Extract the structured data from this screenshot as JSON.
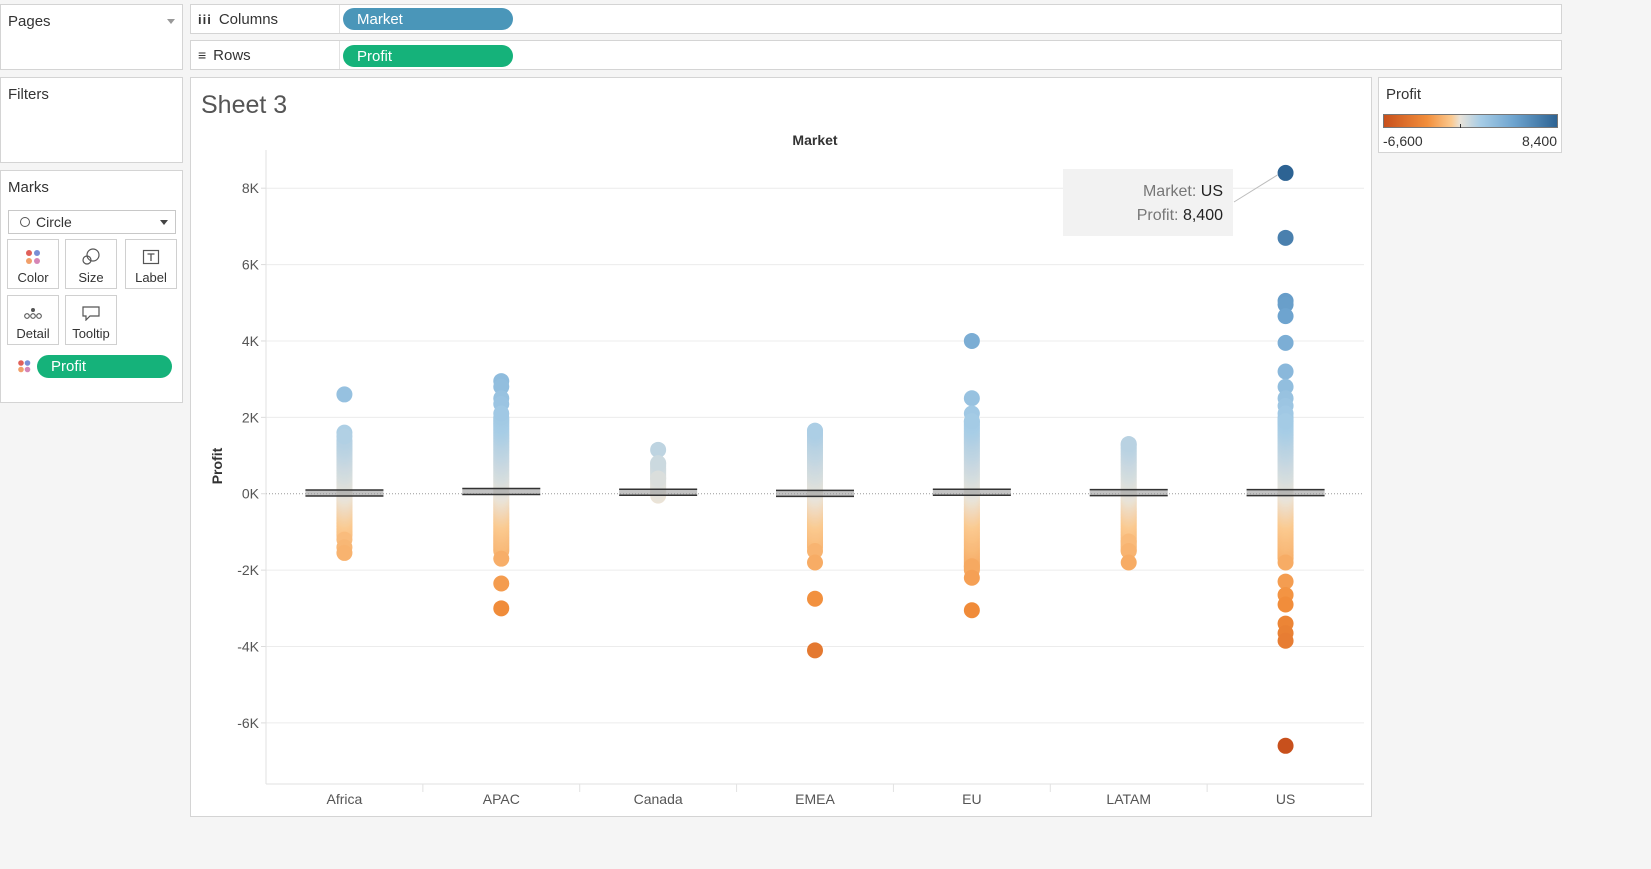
{
  "pages": {
    "title": "Pages"
  },
  "filters": {
    "title": "Filters"
  },
  "marks": {
    "title": "Marks",
    "mark_type": "Circle",
    "buttons": {
      "color": "Color",
      "size": "Size",
      "label": "Label",
      "detail": "Detail",
      "tooltip": "Tooltip"
    },
    "color_pill": "Profit"
  },
  "shelves": {
    "columns": {
      "label": "Columns",
      "pill": "Market"
    },
    "rows": {
      "label": "Rows",
      "pill": "Profit"
    }
  },
  "sheet": {
    "title": "Sheet 3"
  },
  "legend": {
    "title": "Profit",
    "min_label": "-6,600",
    "max_label": "8,400"
  },
  "tooltip": {
    "market_label": "Market:",
    "market_value": "US",
    "profit_label": "Profit:",
    "profit_value": "8,400"
  },
  "colors": {
    "pill_blue": "#4a96b9",
    "pill_green": "#15b27a",
    "high": "#2d6393",
    "low": "#c8501c"
  },
  "chart_data": {
    "type": "scatter",
    "title": "Market",
    "xlabel": "Market",
    "ylabel": "Profit",
    "categories": [
      "Africa",
      "APAC",
      "Canada",
      "EMEA",
      "EU",
      "LATAM",
      "US"
    ],
    "ylim": [
      -7600,
      9000
    ],
    "yticks": [
      -6000,
      -4000,
      -2000,
      0,
      2000,
      4000,
      6000,
      8000
    ],
    "ytick_labels": [
      "-6K",
      "-4K",
      "-2K",
      "0K",
      "2K",
      "4K",
      "6K",
      "8K"
    ],
    "color_range": [
      -6600,
      8400
    ],
    "grid": true,
    "series": [
      {
        "market": "Africa",
        "outliers": [
          2600,
          1600,
          1500,
          -1200,
          -1400,
          -1550
        ],
        "band": [
          -1100,
          1400
        ],
        "mean": 20
      },
      {
        "market": "APAC",
        "outliers": [
          2950,
          2800,
          2500,
          2350,
          2100,
          -1700,
          -2350,
          -3000
        ],
        "band": [
          -1500,
          2000
        ],
        "mean": 60
      },
      {
        "market": "Canada",
        "outliers": [
          1150,
          800,
          400
        ],
        "band": [
          -50,
          800
        ],
        "mean": 40
      },
      {
        "market": "EMEA",
        "outliers": [
          1650,
          -1500,
          -1800,
          -2750,
          -4100
        ],
        "band": [
          -1400,
          1650
        ],
        "mean": 10
      },
      {
        "market": "EU",
        "outliers": [
          4000,
          2500,
          2100,
          1900,
          -1900,
          -2200,
          -3050
        ],
        "band": [
          -2000,
          1900
        ],
        "mean": 40
      },
      {
        "market": "LATAM",
        "outliers": [
          1300,
          -1250,
          -1500,
          -1800
        ],
        "band": [
          -1500,
          1300
        ],
        "mean": 30
      },
      {
        "market": "US",
        "outliers": [
          8400,
          6700,
          5050,
          4950,
          4650,
          3950,
          3200,
          2800,
          2500,
          2300,
          2100,
          1900,
          -1800,
          -2300,
          -2650,
          -2900,
          -3400,
          -3650,
          -3850,
          -6600
        ],
        "band": [
          -1700,
          2000
        ],
        "mean": 30
      }
    ]
  }
}
